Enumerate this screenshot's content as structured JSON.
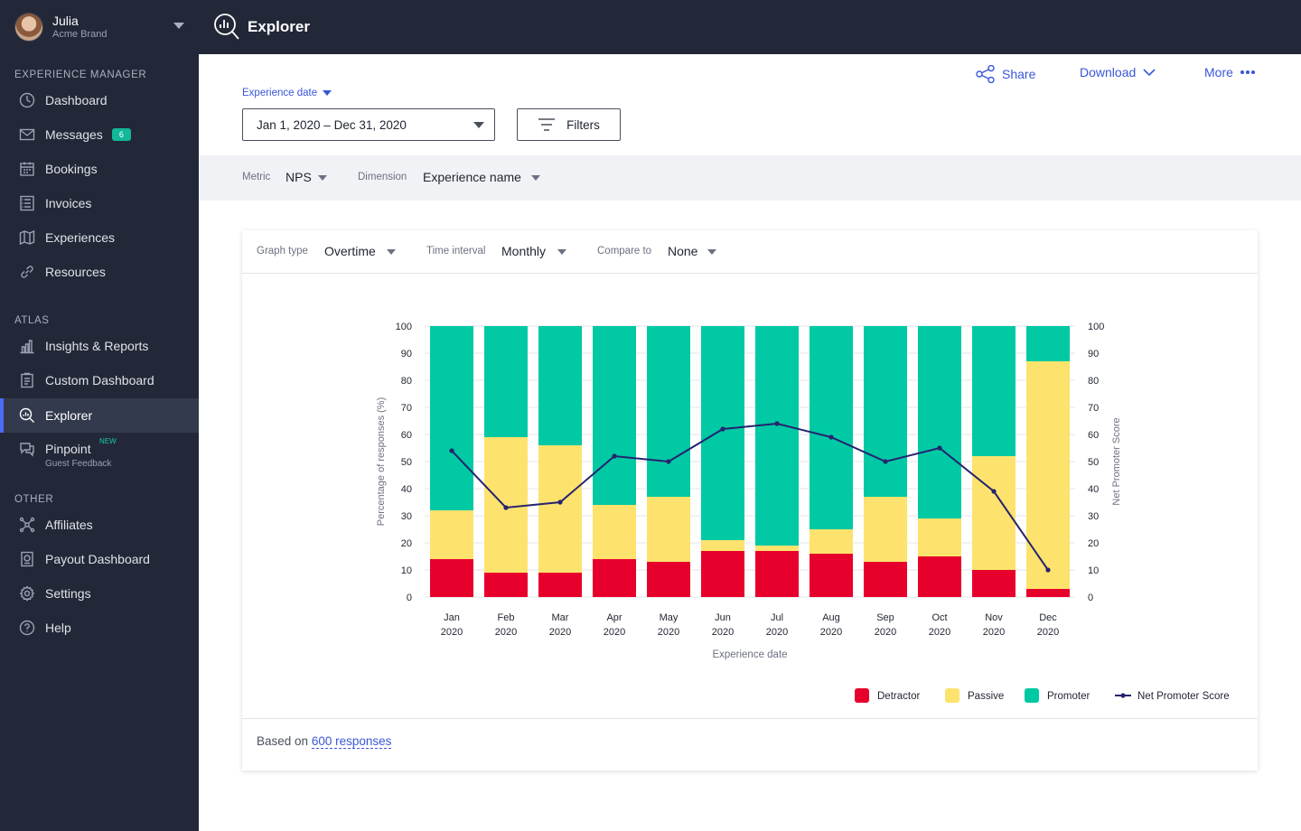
{
  "profile": {
    "name": "Julia",
    "brand": "Acme Brand"
  },
  "sidebar": {
    "sections": {
      "experience_manager": "EXPERIENCE MANAGER",
      "atlas": "ATLAS",
      "other": "OTHER"
    },
    "items": [
      {
        "label": "Dashboard",
        "icon": "dashboard-icon"
      },
      {
        "label": "Messages",
        "icon": "envelope-icon",
        "badge": "6"
      },
      {
        "label": "Bookings",
        "icon": "calendar-icon"
      },
      {
        "label": "Invoices",
        "icon": "invoice-icon"
      },
      {
        "label": "Experiences",
        "icon": "map-icon"
      },
      {
        "label": "Resources",
        "icon": "link-icon"
      },
      {
        "label": "Insights & Reports",
        "icon": "bar-chart-icon"
      },
      {
        "label": "Custom Dashboard",
        "icon": "clipboard-icon"
      },
      {
        "label": "Explorer",
        "icon": "explorer-icon",
        "active": true
      },
      {
        "label": "Pinpoint",
        "icon": "chat-icon",
        "tag": "NEW",
        "sub": "Guest Feedback"
      },
      {
        "label": "Affiliates",
        "icon": "network-icon"
      },
      {
        "label": "Payout Dashboard",
        "icon": "payout-icon"
      },
      {
        "label": "Settings",
        "icon": "gear-icon"
      },
      {
        "label": "Help",
        "icon": "help-icon"
      }
    ]
  },
  "topbar": {
    "title": "Explorer"
  },
  "actions": {
    "share": "Share",
    "download": "Download",
    "more": "More"
  },
  "date_filter": {
    "label": "Experience date",
    "value": "Jan 1, 2020 – Dec 31, 2020",
    "filters_label": "Filters"
  },
  "metric_bar": {
    "metric_label": "Metric",
    "metric_value": "NPS",
    "dimension_label": "Dimension",
    "dimension_value": "Experience name"
  },
  "card": {
    "graph_type_label": "Graph type",
    "graph_type_value": "Overtime",
    "interval_label": "Time interval",
    "interval_value": "Monthly",
    "compare_label": "Compare to",
    "compare_value": "None",
    "footer_prefix": "Based on",
    "footer_link": "600 responses"
  },
  "colors": {
    "detractor": "#e8002d",
    "passive": "#fde36d",
    "promoter": "#00c9a4",
    "nps_line": "#26236e",
    "accent": "#3a56d8"
  },
  "chart_data": {
    "type": "bar",
    "stacked": true,
    "categories": [
      [
        "Jan",
        "2020"
      ],
      [
        "Feb",
        "2020"
      ],
      [
        "Mar",
        "2020"
      ],
      [
        "Apr",
        "2020"
      ],
      [
        "May",
        "2020"
      ],
      [
        "Jun",
        "2020"
      ],
      [
        "Jul",
        "2020"
      ],
      [
        "Aug",
        "2020"
      ],
      [
        "Sep",
        "2020"
      ],
      [
        "Oct",
        "2020"
      ],
      [
        "Nov",
        "2020"
      ],
      [
        "Dec",
        "2020"
      ]
    ],
    "series": [
      {
        "name": "Detractor",
        "values": [
          14,
          9,
          9,
          14,
          13,
          17,
          17,
          16,
          13,
          15,
          10,
          3
        ]
      },
      {
        "name": "Passive",
        "values": [
          18,
          50,
          47,
          20,
          24,
          4,
          2,
          9,
          24,
          14,
          42,
          84
        ]
      },
      {
        "name": "Promoter",
        "values": [
          68,
          41,
          44,
          66,
          63,
          79,
          81,
          75,
          63,
          71,
          48,
          13
        ]
      }
    ],
    "line_series": {
      "name": "Net Promoter Score",
      "values": [
        54,
        33,
        35,
        52,
        50,
        62,
        64,
        59,
        50,
        55,
        39,
        10
      ]
    },
    "ylabel": "Percentage of responses (%)",
    "y2label": "Net Promoter Score",
    "xlabel": "Experience date",
    "ylim": [
      0,
      100
    ],
    "y2lim": [
      0,
      100
    ],
    "yticks": [
      0,
      10,
      20,
      30,
      40,
      50,
      60,
      70,
      80,
      90,
      100
    ],
    "grid": true,
    "legend": "bottom-right"
  }
}
